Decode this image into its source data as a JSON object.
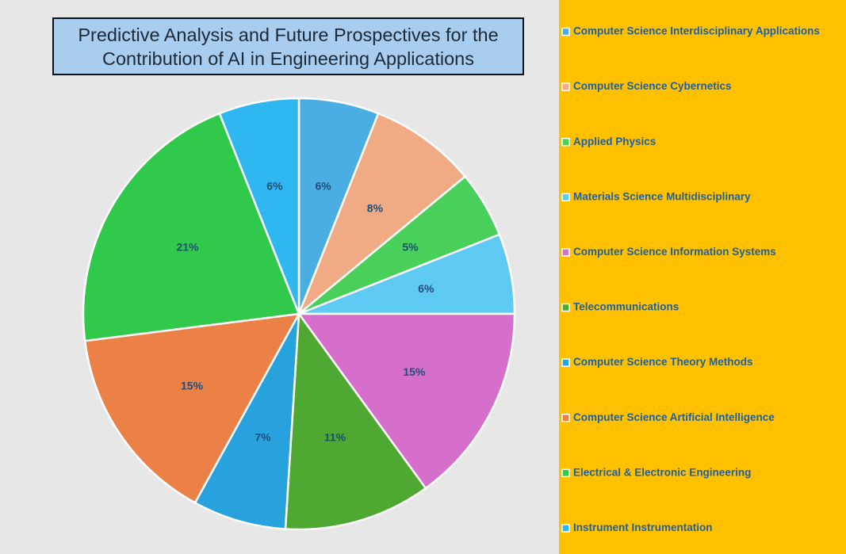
{
  "chart_data": {
    "type": "pie",
    "title": "Predictive Analysis and Future Prospectives for the Contribution of AI in Engineering Applications",
    "categories": [
      "Computer Science Interdisciplinary Applications",
      "Computer Science Cybernetics",
      "Applied Physics",
      "Materials Science Multidisciplinary",
      "Computer Science Information Systems",
      "Telecommunications",
      "Computer Science Theory Methods",
      "Computer Science Artificial Intelligence",
      "Electrical & Electronic Engineering",
      "Instrument Instrumentation"
    ],
    "values": [
      6,
      8,
      5,
      6,
      15,
      11,
      7,
      15,
      21,
      6
    ],
    "value_labels": [
      "6%",
      "8%",
      "5%",
      "6%",
      "15%",
      "11%",
      "7%",
      "15%",
      "21%",
      "6%"
    ],
    "colors": [
      "#4aaee2",
      "#f0aa84",
      "#48d05a",
      "#5ec9f3",
      "#d56fcb",
      "#4fa831",
      "#28a2dc",
      "#ec8147",
      "#31c94c",
      "#2fb7ef"
    ],
    "legend": "right"
  }
}
